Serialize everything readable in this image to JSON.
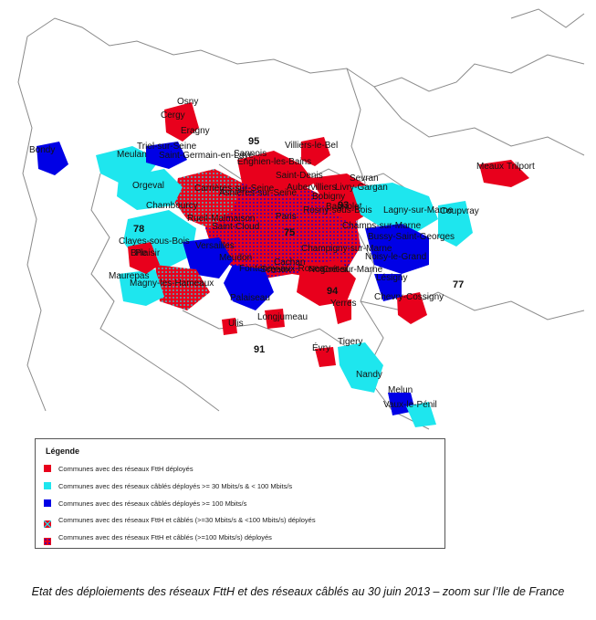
{
  "colors": {
    "ftth": "#e8001c",
    "cable_30_100": "#1ee6ee",
    "cable_100": "#0000e6",
    "mixed_30_100": "#e8001c",
    "mixed_100": "#e8001c",
    "border": "#888888",
    "background": "#ffffff"
  },
  "departments": [
    "95",
    "78",
    "75",
    "93",
    "94",
    "77",
    "91"
  ],
  "communes": [
    "Osny",
    "Cergy",
    "Eragny",
    "Bondy",
    "Triel-sur-Seine",
    "Sannois",
    "Villiers-le-Bel",
    "Meulan",
    "Saint-Germain-en-Laye",
    "Enghien-les-Bains",
    "Meaux",
    "Trilport",
    "Saint-Denis",
    "Sevran",
    "Orgeval",
    "Aubervilliers",
    "Livry-Gargan",
    "Carrières-sur-Seine",
    "Chambourcy",
    "Asnières-sur-Seine",
    "Bobigny",
    "Bagnolet",
    "Rosny-sous-Bois",
    "Lagny-sur-Marne",
    "Coupvray",
    "Champs-sur-Marne",
    "Rueil-Malmaison",
    "Saint-Cloud",
    "Paris",
    "Bussy-Saint-Georges",
    "Clayes-sous-Bois",
    "Versailles",
    "Champigny-sur-Marne",
    "Brie",
    "Plaisir",
    "Meudon",
    "Noisy-le-Grand",
    "Maurepas",
    "Sceaux",
    "Nogent-sur-Marne",
    "Lésigny",
    "Magny-les-Hameaux",
    "Palaiseau",
    "Yerres",
    "Chevry-Cossigny",
    "Ulis",
    "Longjumeau",
    "Évry",
    "Tigery",
    "Nandy",
    "Melun",
    "Vaux-le-Pénil",
    "Fontenay-aux-Roses",
    "Cachan",
    "Créteil"
  ],
  "legend": {
    "title": "Légende",
    "items": [
      {
        "label": "Communes avec des réseaux FttH déployés",
        "swatch": "ftth"
      },
      {
        "label": "Communes avec des réseaux câblés déployés >= 30 Mbits/s & < 100 Mbits/s",
        "swatch": "cable_30_100"
      },
      {
        "label": "Communes avec des réseaux câblés déployés >= 100 Mbits/s",
        "swatch": "cable_100"
      },
      {
        "label": "Communes avec des réseaux FttH et câblés (>=30 Mbits/s & <100 Mbits/s) déployés",
        "swatch": "mixed_30_100"
      },
      {
        "label": "Communes avec des réseaux FttH et câblés (>=100 Mbits/s) déployés",
        "swatch": "mixed_100"
      }
    ]
  },
  "caption": "Etat des déploiements des réseaux FttH et des réseaux câblés au 30 juin 2013 – zoom sur l’Ile de France"
}
